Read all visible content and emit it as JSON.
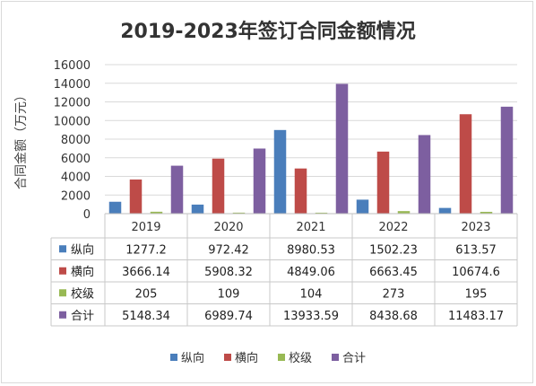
{
  "chart_data": {
    "type": "bar",
    "title": "2019-2023年签订合同金额情况",
    "ylabel": "合同金额（万元）",
    "xlabel": "",
    "categories": [
      "2019",
      "2020",
      "2021",
      "2022",
      "2023"
    ],
    "ylim": [
      0,
      16000
    ],
    "yticks": [
      0,
      2000,
      4000,
      6000,
      8000,
      10000,
      12000,
      14000,
      16000
    ],
    "grid": true,
    "legend_position": "bottom",
    "data_table": true,
    "series": [
      {
        "name": "纵向",
        "color": "#4a7ebb",
        "values": [
          1277.2,
          972.42,
          8980.53,
          1502.23,
          613.57
        ],
        "labels": [
          "1277.2",
          "972.42",
          "8980.53",
          "1502.23",
          "613.57"
        ]
      },
      {
        "name": "横向",
        "color": "#be4b48",
        "values": [
          3666.14,
          5908.32,
          4849.06,
          6663.45,
          10674.6
        ],
        "labels": [
          "3666.14",
          "5908.32",
          "4849.06",
          "6663.45",
          "10674.6"
        ]
      },
      {
        "name": "校级",
        "color": "#98b954",
        "values": [
          205,
          109,
          104,
          273,
          195
        ],
        "labels": [
          "205",
          "109",
          "104",
          "273",
          "195"
        ]
      },
      {
        "name": "合计",
        "color": "#7d5fa0",
        "values": [
          5148.34,
          6989.74,
          13933.59,
          8438.68,
          11483.17
        ],
        "labels": [
          "5148.34",
          "6989.74",
          "13933.59",
          "8438.68",
          "11483.17"
        ]
      }
    ]
  }
}
